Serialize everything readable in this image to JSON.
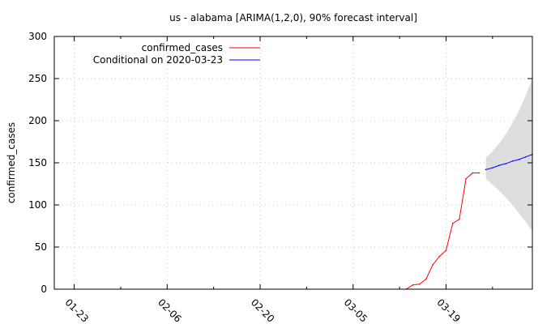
{
  "chart_data": {
    "type": "line",
    "title": "us - alabama [ARIMA(1,2,0), 90% forecast interval]",
    "xlabel": "",
    "ylabel": "confirmed_cases",
    "x_ticks": [
      "01-23",
      "02-06",
      "02-20",
      "03-05",
      "03-19"
    ],
    "ylim": [
      0,
      300
    ],
    "y_ticks": [
      0,
      50,
      100,
      150,
      200,
      250,
      300
    ],
    "xlim": [
      "2020-01-20",
      "2020-04-01"
    ],
    "grid": true,
    "legend_position": "top-left",
    "series": [
      {
        "name": "confirmed_cases",
        "color": "#ff0000",
        "points": [
          {
            "x": "2020-03-13",
            "y": 0
          },
          {
            "x": "2020-03-14",
            "y": 5
          },
          {
            "x": "2020-03-15",
            "y": 6
          },
          {
            "x": "2020-03-16",
            "y": 12
          },
          {
            "x": "2020-03-17",
            "y": 29
          },
          {
            "x": "2020-03-18",
            "y": 39
          },
          {
            "x": "2020-03-19",
            "y": 46
          },
          {
            "x": "2020-03-20",
            "y": 78
          },
          {
            "x": "2020-03-21",
            "y": 83
          },
          {
            "x": "2020-03-22",
            "y": 131
          },
          {
            "x": "2020-03-23",
            "y": 138
          },
          {
            "x": "2020-03-24",
            "y": 138
          }
        ]
      },
      {
        "name": "Conditional on 2020-03-23",
        "color": "#0000ff",
        "points": [
          {
            "x": "2020-03-25",
            "y": 142
          },
          {
            "x": "2020-03-26",
            "y": 144
          },
          {
            "x": "2020-03-27",
            "y": 147
          },
          {
            "x": "2020-03-28",
            "y": 149
          },
          {
            "x": "2020-03-29",
            "y": 152
          },
          {
            "x": "2020-03-30",
            "y": 154
          },
          {
            "x": "2020-03-31",
            "y": 157
          },
          {
            "x": "2020-04-01",
            "y": 160
          }
        ]
      }
    ],
    "forecast_interval": {
      "color": "#dddddd",
      "points": [
        {
          "x": "2020-03-25",
          "low": 131,
          "high": 156
        },
        {
          "x": "2020-03-26",
          "low": 124,
          "high": 164
        },
        {
          "x": "2020-03-27",
          "low": 117,
          "high": 173
        },
        {
          "x": "2020-03-28",
          "low": 109,
          "high": 184
        },
        {
          "x": "2020-03-29",
          "low": 100,
          "high": 197
        },
        {
          "x": "2020-03-30",
          "low": 90,
          "high": 212
        },
        {
          "x": "2020-03-31",
          "low": 80,
          "high": 230
        },
        {
          "x": "2020-04-01",
          "low": 69,
          "high": 250
        }
      ]
    }
  }
}
